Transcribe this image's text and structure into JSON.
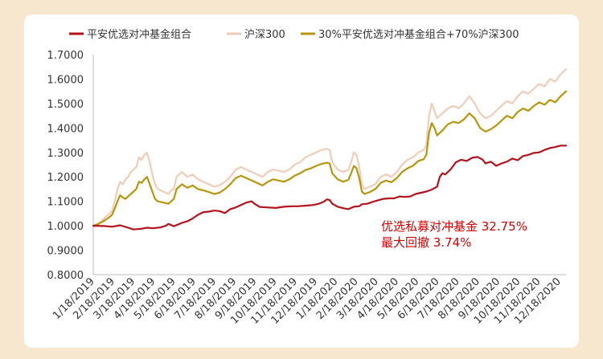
{
  "chart_data": {
    "type": "line",
    "title": "",
    "xlabel": "",
    "ylabel": "",
    "ylim": [
      0.8,
      1.7
    ],
    "y_ticks": [
      "0.8000",
      "0.9000",
      "1.0000",
      "1.1000",
      "1.2000",
      "1.3000",
      "1.4000",
      "1.5000",
      "1.6000",
      "1.7000"
    ],
    "x_ticks": [
      "1/18/2019",
      "2/18/2019",
      "3/18/2019",
      "4/18/2019",
      "5/18/2019",
      "6/18/2019",
      "7/18/2019",
      "8/18/2019",
      "9/18/2019",
      "10/18/2019",
      "11/18/2019",
      "12/18/2019",
      "1/18/2020",
      "2/18/2020",
      "3/18/2020",
      "4/18/2020",
      "5/18/2020",
      "6/18/2020",
      "7/18/2020",
      "8/18/2020",
      "9/18/2020",
      "10/18/2020",
      "11/18/2020",
      "12/18/2020"
    ],
    "x_domain_days": [
      0,
      352
    ],
    "series": [
      {
        "name": "平安优选对冲基金组合",
        "color": "#b5121b",
        "points": [
          [
            0,
            1.0
          ],
          [
            8,
            0.999
          ],
          [
            14,
            0.996
          ],
          [
            20,
            1.002
          ],
          [
            26,
            0.992
          ],
          [
            30,
            0.985
          ],
          [
            36,
            0.988
          ],
          [
            40,
            0.992
          ],
          [
            44,
            0.99
          ],
          [
            50,
            0.993
          ],
          [
            54,
            1.0
          ],
          [
            56,
            1.008
          ],
          [
            58,
            1.003
          ],
          [
            60,
            0.998
          ],
          [
            66,
            1.012
          ],
          [
            70,
            1.018
          ],
          [
            74,
            1.03
          ],
          [
            78,
            1.045
          ],
          [
            82,
            1.056
          ],
          [
            86,
            1.058
          ],
          [
            90,
            1.062
          ],
          [
            94,
            1.06
          ],
          [
            98,
            1.052
          ],
          [
            102,
            1.068
          ],
          [
            106,
            1.075
          ],
          [
            110,
            1.085
          ],
          [
            114,
            1.095
          ],
          [
            118,
            1.1
          ],
          [
            120,
            1.09
          ],
          [
            124,
            1.077
          ],
          [
            130,
            1.075
          ],
          [
            136,
            1.073
          ],
          [
            142,
            1.078
          ],
          [
            148,
            1.08
          ],
          [
            152,
            1.08
          ],
          [
            158,
            1.082
          ],
          [
            164,
            1.085
          ],
          [
            168,
            1.09
          ],
          [
            170,
            1.095
          ],
          [
            172,
            1.1
          ],
          [
            174,
            1.108
          ],
          [
            176,
            1.105
          ],
          [
            178,
            1.09
          ],
          [
            182,
            1.078
          ],
          [
            186,
            1.072
          ],
          [
            190,
            1.068
          ],
          [
            194,
            1.078
          ],
          [
            198,
            1.08
          ],
          [
            200,
            1.088
          ],
          [
            204,
            1.09
          ],
          [
            208,
            1.098
          ],
          [
            212,
            1.104
          ],
          [
            216,
            1.11
          ],
          [
            220,
            1.112
          ],
          [
            224,
            1.112
          ],
          [
            228,
            1.12
          ],
          [
            232,
            1.118
          ],
          [
            236,
            1.12
          ],
          [
            240,
            1.13
          ],
          [
            244,
            1.135
          ],
          [
            248,
            1.14
          ],
          [
            252,
            1.148
          ],
          [
            256,
            1.16
          ],
          [
            258,
            1.2
          ],
          [
            260,
            1.215
          ],
          [
            262,
            1.21
          ],
          [
            266,
            1.23
          ],
          [
            270,
            1.26
          ],
          [
            274,
            1.27
          ],
          [
            278,
            1.265
          ],
          [
            282,
            1.278
          ],
          [
            286,
            1.282
          ],
          [
            290,
            1.27
          ],
          [
            292,
            1.255
          ],
          [
            296,
            1.262
          ],
          [
            300,
            1.245
          ],
          [
            304,
            1.255
          ],
          [
            308,
            1.262
          ],
          [
            312,
            1.275
          ],
          [
            316,
            1.268
          ],
          [
            320,
            1.285
          ],
          [
            324,
            1.29
          ],
          [
            328,
            1.298
          ],
          [
            332,
            1.3
          ],
          [
            336,
            1.31
          ],
          [
            340,
            1.318
          ],
          [
            344,
            1.322
          ],
          [
            348,
            1.328
          ],
          [
            352,
            1.328
          ]
        ]
      },
      {
        "name": "沪深300",
        "color": "#f0cdb8",
        "points": [
          [
            0,
            1.0
          ],
          [
            4,
            1.01
          ],
          [
            8,
            1.03
          ],
          [
            12,
            1.05
          ],
          [
            14,
            1.06
          ],
          [
            16,
            1.1
          ],
          [
            18,
            1.15
          ],
          [
            20,
            1.18
          ],
          [
            22,
            1.17
          ],
          [
            24,
            1.19
          ],
          [
            26,
            1.2
          ],
          [
            28,
            1.22
          ],
          [
            30,
            1.23
          ],
          [
            32,
            1.24
          ],
          [
            34,
            1.28
          ],
          [
            36,
            1.27
          ],
          [
            38,
            1.29
          ],
          [
            40,
            1.3
          ],
          [
            42,
            1.26
          ],
          [
            44,
            1.21
          ],
          [
            46,
            1.17
          ],
          [
            48,
            1.15
          ],
          [
            52,
            1.14
          ],
          [
            56,
            1.13
          ],
          [
            58,
            1.145
          ],
          [
            60,
            1.15
          ],
          [
            62,
            1.2
          ],
          [
            64,
            1.21
          ],
          [
            66,
            1.22
          ],
          [
            70,
            1.2
          ],
          [
            74,
            1.21
          ],
          [
            78,
            1.19
          ],
          [
            82,
            1.18
          ],
          [
            86,
            1.17
          ],
          [
            90,
            1.16
          ],
          [
            94,
            1.165
          ],
          [
            98,
            1.18
          ],
          [
            102,
            1.2
          ],
          [
            106,
            1.23
          ],
          [
            110,
            1.24
          ],
          [
            114,
            1.23
          ],
          [
            118,
            1.22
          ],
          [
            122,
            1.21
          ],
          [
            126,
            1.2
          ],
          [
            130,
            1.22
          ],
          [
            134,
            1.23
          ],
          [
            138,
            1.225
          ],
          [
            142,
            1.22
          ],
          [
            146,
            1.23
          ],
          [
            150,
            1.25
          ],
          [
            154,
            1.26
          ],
          [
            158,
            1.28
          ],
          [
            162,
            1.29
          ],
          [
            166,
            1.3
          ],
          [
            170,
            1.31
          ],
          [
            174,
            1.315
          ],
          [
            176,
            1.31
          ],
          [
            178,
            1.26
          ],
          [
            182,
            1.23
          ],
          [
            186,
            1.22
          ],
          [
            190,
            1.23
          ],
          [
            192,
            1.26
          ],
          [
            194,
            1.3
          ],
          [
            196,
            1.29
          ],
          [
            198,
            1.24
          ],
          [
            200,
            1.17
          ],
          [
            202,
            1.15
          ],
          [
            206,
            1.16
          ],
          [
            210,
            1.17
          ],
          [
            214,
            1.2
          ],
          [
            218,
            1.21
          ],
          [
            222,
            1.2
          ],
          [
            226,
            1.22
          ],
          [
            230,
            1.25
          ],
          [
            234,
            1.27
          ],
          [
            238,
            1.28
          ],
          [
            242,
            1.3
          ],
          [
            246,
            1.31
          ],
          [
            248,
            1.33
          ],
          [
            250,
            1.45
          ],
          [
            252,
            1.5
          ],
          [
            254,
            1.47
          ],
          [
            256,
            1.44
          ],
          [
            260,
            1.46
          ],
          [
            264,
            1.48
          ],
          [
            268,
            1.49
          ],
          [
            272,
            1.48
          ],
          [
            276,
            1.5
          ],
          [
            280,
            1.53
          ],
          [
            284,
            1.5
          ],
          [
            288,
            1.46
          ],
          [
            292,
            1.44
          ],
          [
            296,
            1.45
          ],
          [
            300,
            1.47
          ],
          [
            304,
            1.49
          ],
          [
            308,
            1.51
          ],
          [
            312,
            1.5
          ],
          [
            316,
            1.53
          ],
          [
            320,
            1.55
          ],
          [
            324,
            1.54
          ],
          [
            328,
            1.56
          ],
          [
            332,
            1.58
          ],
          [
            336,
            1.57
          ],
          [
            340,
            1.6
          ],
          [
            344,
            1.59
          ],
          [
            348,
            1.62
          ],
          [
            352,
            1.64
          ]
        ]
      },
      {
        "name": "30%平安优选对冲基金组合+70%沪深300",
        "color": "#b8960c",
        "points": [
          [
            0,
            1.0
          ],
          [
            4,
            1.008
          ],
          [
            8,
            1.02
          ],
          [
            12,
            1.035
          ],
          [
            14,
            1.045
          ],
          [
            16,
            1.07
          ],
          [
            18,
            1.1
          ],
          [
            20,
            1.125
          ],
          [
            22,
            1.115
          ],
          [
            24,
            1.11
          ],
          [
            26,
            1.12
          ],
          [
            28,
            1.13
          ],
          [
            30,
            1.14
          ],
          [
            32,
            1.15
          ],
          [
            34,
            1.18
          ],
          [
            36,
            1.175
          ],
          [
            38,
            1.19
          ],
          [
            40,
            1.2
          ],
          [
            42,
            1.17
          ],
          [
            44,
            1.14
          ],
          [
            46,
            1.11
          ],
          [
            48,
            1.1
          ],
          [
            52,
            1.095
          ],
          [
            56,
            1.09
          ],
          [
            58,
            1.1
          ],
          [
            60,
            1.11
          ],
          [
            62,
            1.15
          ],
          [
            64,
            1.16
          ],
          [
            66,
            1.17
          ],
          [
            70,
            1.155
          ],
          [
            74,
            1.165
          ],
          [
            78,
            1.15
          ],
          [
            82,
            1.145
          ],
          [
            86,
            1.138
          ],
          [
            90,
            1.13
          ],
          [
            94,
            1.135
          ],
          [
            98,
            1.15
          ],
          [
            102,
            1.17
          ],
          [
            106,
            1.195
          ],
          [
            110,
            1.205
          ],
          [
            114,
            1.195
          ],
          [
            118,
            1.185
          ],
          [
            122,
            1.175
          ],
          [
            126,
            1.165
          ],
          [
            130,
            1.18
          ],
          [
            134,
            1.19
          ],
          [
            138,
            1.185
          ],
          [
            142,
            1.18
          ],
          [
            146,
            1.19
          ],
          [
            150,
            1.205
          ],
          [
            154,
            1.215
          ],
          [
            158,
            1.228
          ],
          [
            162,
            1.235
          ],
          [
            166,
            1.245
          ],
          [
            170,
            1.253
          ],
          [
            174,
            1.258
          ],
          [
            176,
            1.255
          ],
          [
            178,
            1.215
          ],
          [
            182,
            1.19
          ],
          [
            186,
            1.18
          ],
          [
            190,
            1.188
          ],
          [
            192,
            1.215
          ],
          [
            194,
            1.245
          ],
          [
            196,
            1.235
          ],
          [
            198,
            1.195
          ],
          [
            200,
            1.14
          ],
          [
            202,
            1.13
          ],
          [
            206,
            1.138
          ],
          [
            210,
            1.15
          ],
          [
            214,
            1.175
          ],
          [
            218,
            1.185
          ],
          [
            222,
            1.178
          ],
          [
            226,
            1.195
          ],
          [
            230,
            1.22
          ],
          [
            234,
            1.235
          ],
          [
            238,
            1.245
          ],
          [
            242,
            1.265
          ],
          [
            246,
            1.272
          ],
          [
            248,
            1.29
          ],
          [
            250,
            1.38
          ],
          [
            252,
            1.42
          ],
          [
            254,
            1.4
          ],
          [
            256,
            1.37
          ],
          [
            260,
            1.39
          ],
          [
            264,
            1.415
          ],
          [
            268,
            1.425
          ],
          [
            272,
            1.42
          ],
          [
            276,
            1.435
          ],
          [
            280,
            1.46
          ],
          [
            284,
            1.44
          ],
          [
            288,
            1.4
          ],
          [
            292,
            1.385
          ],
          [
            296,
            1.395
          ],
          [
            300,
            1.41
          ],
          [
            304,
            1.43
          ],
          [
            308,
            1.45
          ],
          [
            312,
            1.44
          ],
          [
            316,
            1.465
          ],
          [
            320,
            1.48
          ],
          [
            324,
            1.47
          ],
          [
            328,
            1.49
          ],
          [
            332,
            1.505
          ],
          [
            336,
            1.495
          ],
          [
            340,
            1.515
          ],
          [
            344,
            1.505
          ],
          [
            348,
            1.53
          ],
          [
            352,
            1.55
          ]
        ]
      }
    ],
    "annotations": [
      "优选私募对冲基金 32.75%",
      "最大回撤 3.74%"
    ]
  }
}
